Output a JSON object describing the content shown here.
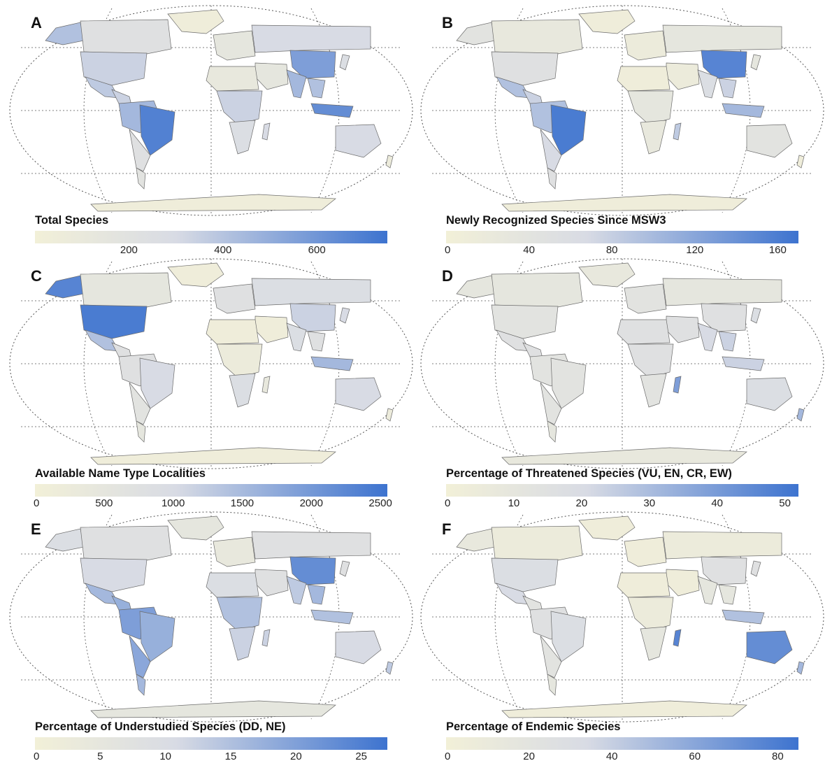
{
  "panels": [
    {
      "letter": "A",
      "legend_title": "Total Species",
      "scale": {
        "min": 0,
        "max": 750,
        "ticks": [
          "200",
          "400",
          "600"
        ],
        "tick_values": [
          200,
          400,
          600
        ]
      },
      "region_values": {
        "na": 0.3,
        "alaska": 0.55,
        "greenland": 0.05,
        "usa": 0.45,
        "mexico": 0.5,
        "central": 0.45,
        "sa_north": 0.6,
        "brazil": 0.92,
        "sa_south": 0.3,
        "patagonia": 0.25,
        "europe": 0.2,
        "russia": 0.4,
        "china": 0.75,
        "india": 0.6,
        "seasia": 0.55,
        "indonesia": 0.85,
        "australia": 0.4,
        "africa_n": 0.15,
        "africa_c": 0.45,
        "africa_s": 0.35,
        "madagascar": 0.4,
        "middle_east": 0.2,
        "antarctica": 0.05,
        "japan": 0.35,
        "nz": 0.1
      }
    },
    {
      "letter": "B",
      "legend_title": "Newly Recognized Species Since MSW3",
      "scale": {
        "min": 0,
        "max": 170,
        "ticks": [
          "0",
          "40",
          "80",
          "120",
          "160"
        ],
        "tick_values": [
          0,
          40,
          80,
          120,
          160
        ]
      },
      "region_values": {
        "na": 0.15,
        "alaska": 0.25,
        "greenland": 0.05,
        "usa": 0.3,
        "mexico": 0.55,
        "central": 0.45,
        "sa_north": 0.55,
        "brazil": 0.95,
        "sa_south": 0.4,
        "patagonia": 0.3,
        "europe": 0.1,
        "russia": 0.2,
        "china": 0.9,
        "india": 0.35,
        "seasia": 0.45,
        "indonesia": 0.6,
        "australia": 0.25,
        "africa_n": 0.05,
        "africa_c": 0.2,
        "africa_s": 0.15,
        "madagascar": 0.5,
        "middle_east": 0.1,
        "antarctica": 0.05,
        "japan": 0.2,
        "nz": 0.05
      }
    },
    {
      "letter": "C",
      "legend_title": "Available Name Type Localities",
      "scale": {
        "min": 0,
        "max": 2550,
        "ticks": [
          "0",
          "500",
          "1000",
          "1500",
          "2000",
          "2500"
        ],
        "tick_values": [
          0,
          500,
          1000,
          1500,
          2000,
          2500
        ]
      },
      "region_values": {
        "na": 0.2,
        "alaska": 0.9,
        "greenland": 0.05,
        "usa": 0.95,
        "mexico": 0.55,
        "central": 0.3,
        "sa_north": 0.3,
        "brazil": 0.4,
        "sa_south": 0.25,
        "patagonia": 0.2,
        "europe": 0.3,
        "russia": 0.35,
        "china": 0.45,
        "india": 0.35,
        "seasia": 0.3,
        "indonesia": 0.6,
        "australia": 0.4,
        "africa_n": 0.05,
        "africa_c": 0.1,
        "africa_s": 0.35,
        "madagascar": 0.15,
        "middle_east": 0.05,
        "antarctica": 0.05,
        "japan": 0.4,
        "nz": 0.1
      }
    },
    {
      "letter": "D",
      "legend_title": "Percentage of Threatened Species (VU, EN, CR, EW)",
      "scale": {
        "min": 0,
        "max": 52,
        "ticks": [
          "0",
          "10",
          "20",
          "30",
          "40",
          "50"
        ],
        "tick_values": [
          0,
          10,
          20,
          30,
          40,
          50
        ]
      },
      "region_values": {
        "na": 0.2,
        "alaska": 0.2,
        "greenland": 0.15,
        "usa": 0.25,
        "mexico": 0.3,
        "central": 0.3,
        "sa_north": 0.25,
        "brazil": 0.25,
        "sa_south": 0.25,
        "patagonia": 0.2,
        "europe": 0.25,
        "russia": 0.2,
        "china": 0.3,
        "india": 0.4,
        "seasia": 0.45,
        "indonesia": 0.45,
        "australia": 0.35,
        "africa_n": 0.3,
        "africa_c": 0.3,
        "africa_s": 0.25,
        "madagascar": 0.75,
        "middle_east": 0.3,
        "antarctica": 0.15,
        "japan": 0.35,
        "nz": 0.6
      }
    },
    {
      "letter": "E",
      "legend_title": "Percentage of Understudied Species (DD, NE)",
      "scale": {
        "min": 0,
        "max": 27,
        "ticks": [
          "0",
          "5",
          "10",
          "15",
          "20",
          "25"
        ],
        "tick_values": [
          0,
          5,
          10,
          15,
          20,
          25
        ]
      },
      "region_values": {
        "na": 0.3,
        "alaska": 0.35,
        "greenland": 0.2,
        "usa": 0.4,
        "mexico": 0.6,
        "central": 0.65,
        "sa_north": 0.75,
        "brazil": 0.65,
        "sa_south": 0.7,
        "patagonia": 0.6,
        "europe": 0.15,
        "russia": 0.3,
        "china": 0.85,
        "india": 0.5,
        "seasia": 0.6,
        "indonesia": 0.55,
        "australia": 0.4,
        "africa_n": 0.35,
        "africa_c": 0.55,
        "africa_s": 0.45,
        "madagascar": 0.45,
        "middle_east": 0.3,
        "antarctica": 0.2,
        "japan": 0.3,
        "nz": 0.5
      }
    },
    {
      "letter": "F",
      "legend_title": "Percentage of Endemic Species",
      "scale": {
        "min": 0,
        "max": 85,
        "ticks": [
          "0",
          "20",
          "40",
          "60",
          "80"
        ],
        "tick_values": [
          0,
          20,
          40,
          60,
          80
        ]
      },
      "region_values": {
        "na": 0.1,
        "alaska": 0.15,
        "greenland": 0.05,
        "usa": 0.35,
        "mexico": 0.4,
        "central": 0.25,
        "sa_north": 0.3,
        "brazil": 0.35,
        "sa_south": 0.25,
        "patagonia": 0.2,
        "europe": 0.05,
        "russia": 0.1,
        "china": 0.3,
        "india": 0.2,
        "seasia": 0.2,
        "indonesia": 0.55,
        "australia": 0.85,
        "africa_n": 0.05,
        "africa_c": 0.1,
        "africa_s": 0.2,
        "madagascar": 0.9,
        "middle_east": 0.05,
        "antarctica": 0.05,
        "japan": 0.3,
        "nz": 0.6
      }
    }
  ],
  "colors": {
    "low": "#f2f0d8",
    "mid": "#d8dbe4",
    "high": "#3d73cf",
    "stroke": "#6b6b6b",
    "graticule": "#555555"
  }
}
